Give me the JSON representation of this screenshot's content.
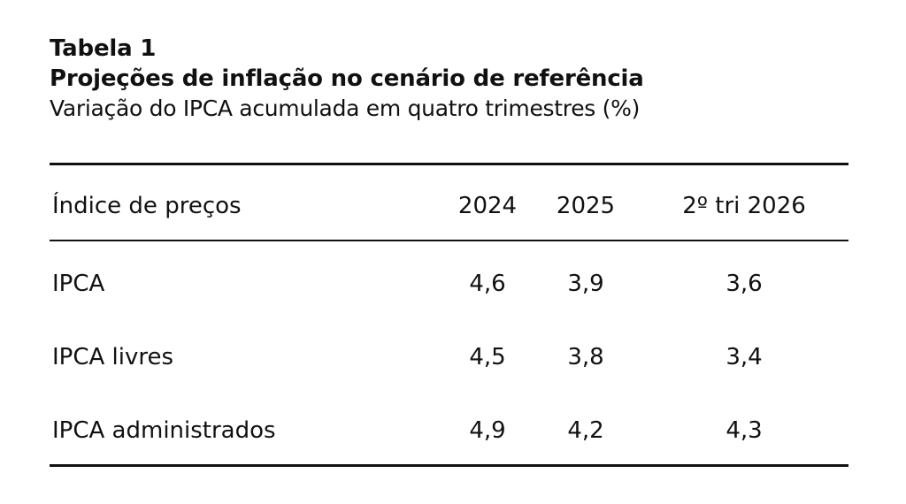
{
  "table": {
    "label": "Tabela 1",
    "title": "Projeções de inflação no cenário de referência",
    "subtitle": "Variação do IPCA acumulada em quatro trimestres (%)",
    "columns": [
      "Índice de preços",
      "2024",
      "2025",
      "2º tri 2026"
    ],
    "rows": [
      [
        "IPCA",
        "4,6",
        "3,9",
        "3,6"
      ],
      [
        "IPCA livres",
        "4,5",
        "3,8",
        "3,4"
      ],
      [
        "IPCA administrados",
        "4,9",
        "4,2",
        "4,3"
      ]
    ]
  }
}
